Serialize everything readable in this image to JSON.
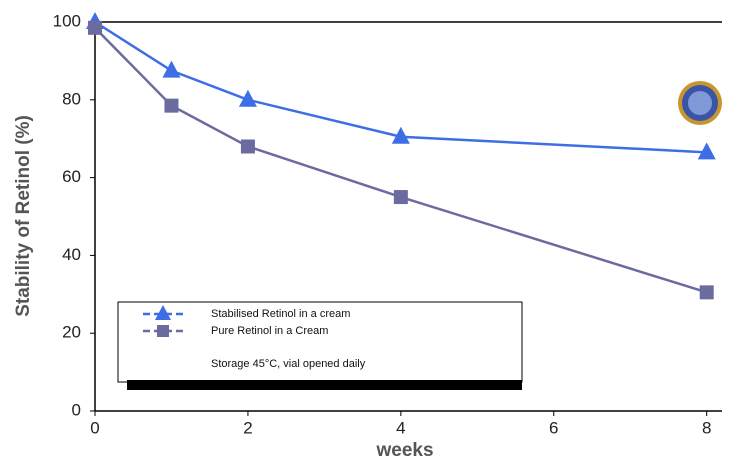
{
  "chart_data": {
    "type": "line",
    "x_label": "weeks",
    "y_label": "Stability of Retinol (%)",
    "annotation": "Storage 45°C, vial opened daily",
    "x": [
      0,
      1,
      2,
      4,
      8
    ],
    "series": [
      {
        "name": "Stabilised Retinol in a cream",
        "color": "#3d6ee6",
        "marker": "triangle",
        "values": [
          100,
          87.5,
          80,
          70.5,
          66.5
        ]
      },
      {
        "name": "Pure Retinol in a Cream",
        "color": "#6b6ba0",
        "marker": "square",
        "values": [
          98.5,
          78.5,
          68,
          55,
          30.5
        ]
      }
    ],
    "xlim": [
      0,
      8.2
    ],
    "xticks": [
      0,
      2,
      4,
      6,
      8
    ],
    "ylim": [
      0,
      100
    ],
    "yticks": [
      0,
      20,
      40,
      60,
      80,
      100
    ]
  }
}
